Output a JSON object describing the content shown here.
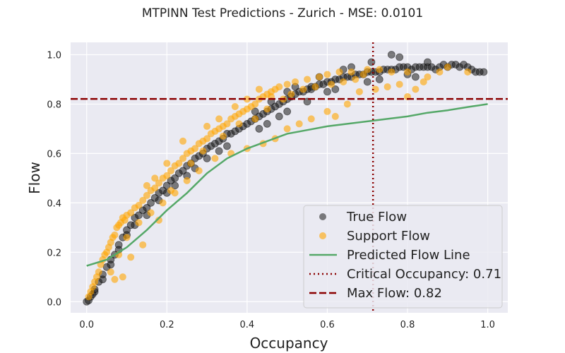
{
  "chart_data": {
    "type": "scatter",
    "title": "MTPINN Test Predictions - Zurich - MSE: 0.0101",
    "xlabel": "Occupancy",
    "ylabel": "Flow",
    "xlim": [
      -0.04,
      1.05
    ],
    "ylim": [
      -0.045,
      1.05
    ],
    "xticks": [
      0.0,
      0.2,
      0.4,
      0.6,
      0.8,
      1.0
    ],
    "yticks": [
      0.0,
      0.2,
      0.4,
      0.6,
      0.8,
      1.0
    ],
    "tick_labels_x": [
      "0.0",
      "0.2",
      "0.4",
      "0.6",
      "0.8",
      "1.0"
    ],
    "tick_labels_y": [
      "0.0",
      "0.2",
      "0.4",
      "0.6",
      "0.8",
      "1.0"
    ],
    "grid": true,
    "legend_position": "lower-right",
    "colors": {
      "background": "#eaeaf2",
      "grid": "#ffffff",
      "true_flow": "#1a1a1a",
      "support_flow": "#ffa500",
      "predicted_line": "#55a868",
      "reference_lines": "#8b0000"
    },
    "series": [
      {
        "name": "True Flow",
        "kind": "scatter",
        "marker": "circle",
        "opacity": 0.55,
        "points": [
          [
            0.0,
            0.0
          ],
          [
            0.005,
            0.005
          ],
          [
            0.01,
            0.02
          ],
          [
            0.015,
            0.03
          ],
          [
            0.02,
            0.04
          ],
          [
            0.03,
            0.08
          ],
          [
            0.04,
            0.11
          ],
          [
            0.05,
            0.14
          ],
          [
            0.06,
            0.17
          ],
          [
            0.07,
            0.19
          ],
          [
            0.08,
            0.23
          ],
          [
            0.09,
            0.26
          ],
          [
            0.1,
            0.29
          ],
          [
            0.11,
            0.31
          ],
          [
            0.12,
            0.34
          ],
          [
            0.13,
            0.35
          ],
          [
            0.14,
            0.37
          ],
          [
            0.15,
            0.38
          ],
          [
            0.16,
            0.4
          ],
          [
            0.17,
            0.42
          ],
          [
            0.18,
            0.44
          ],
          [
            0.19,
            0.45
          ],
          [
            0.2,
            0.47
          ],
          [
            0.21,
            0.49
          ],
          [
            0.22,
            0.5
          ],
          [
            0.23,
            0.52
          ],
          [
            0.24,
            0.53
          ],
          [
            0.25,
            0.55
          ],
          [
            0.26,
            0.56
          ],
          [
            0.27,
            0.58
          ],
          [
            0.28,
            0.59
          ],
          [
            0.29,
            0.6
          ],
          [
            0.3,
            0.62
          ],
          [
            0.31,
            0.63
          ],
          [
            0.32,
            0.64
          ],
          [
            0.33,
            0.65
          ],
          [
            0.34,
            0.66
          ],
          [
            0.35,
            0.68
          ],
          [
            0.36,
            0.68
          ],
          [
            0.37,
            0.69
          ],
          [
            0.38,
            0.7
          ],
          [
            0.39,
            0.71
          ],
          [
            0.4,
            0.72
          ],
          [
            0.41,
            0.73
          ],
          [
            0.42,
            0.74
          ],
          [
            0.43,
            0.75
          ],
          [
            0.44,
            0.76
          ],
          [
            0.45,
            0.77
          ],
          [
            0.46,
            0.78
          ],
          [
            0.47,
            0.79
          ],
          [
            0.48,
            0.8
          ],
          [
            0.49,
            0.81
          ],
          [
            0.5,
            0.82
          ],
          [
            0.51,
            0.83
          ],
          [
            0.52,
            0.84
          ],
          [
            0.53,
            0.85
          ],
          [
            0.54,
            0.85
          ],
          [
            0.55,
            0.86
          ],
          [
            0.56,
            0.87
          ],
          [
            0.57,
            0.87
          ],
          [
            0.58,
            0.88
          ],
          [
            0.59,
            0.88
          ],
          [
            0.6,
            0.89
          ],
          [
            0.61,
            0.89
          ],
          [
            0.62,
            0.9
          ],
          [
            0.63,
            0.9
          ],
          [
            0.64,
            0.91
          ],
          [
            0.65,
            0.91
          ],
          [
            0.66,
            0.91
          ],
          [
            0.67,
            0.92
          ],
          [
            0.68,
            0.92
          ],
          [
            0.69,
            0.92
          ],
          [
            0.7,
            0.93
          ],
          [
            0.71,
            0.93
          ],
          [
            0.72,
            0.93
          ],
          [
            0.73,
            0.93
          ],
          [
            0.74,
            0.94
          ],
          [
            0.75,
            0.94
          ],
          [
            0.76,
            0.94
          ],
          [
            0.77,
            0.94
          ],
          [
            0.78,
            0.95
          ],
          [
            0.79,
            0.95
          ],
          [
            0.8,
            0.95
          ],
          [
            0.81,
            0.94
          ],
          [
            0.82,
            0.95
          ],
          [
            0.83,
            0.95
          ],
          [
            0.84,
            0.95
          ],
          [
            0.85,
            0.95
          ],
          [
            0.86,
            0.95
          ],
          [
            0.87,
            0.94
          ],
          [
            0.88,
            0.95
          ],
          [
            0.89,
            0.96
          ],
          [
            0.9,
            0.95
          ],
          [
            0.91,
            0.96
          ],
          [
            0.92,
            0.96
          ],
          [
            0.93,
            0.95
          ],
          [
            0.94,
            0.96
          ],
          [
            0.95,
            0.95
          ],
          [
            0.96,
            0.94
          ],
          [
            0.97,
            0.93
          ],
          [
            0.98,
            0.93
          ],
          [
            0.99,
            0.93
          ],
          [
            0.76,
            1.0
          ],
          [
            0.78,
            0.99
          ],
          [
            0.85,
            0.97
          ],
          [
            0.64,
            0.94
          ],
          [
            0.66,
            0.95
          ],
          [
            0.71,
            0.97
          ],
          [
            0.56,
            0.86
          ],
          [
            0.48,
            0.75
          ],
          [
            0.5,
            0.77
          ],
          [
            0.45,
            0.72
          ],
          [
            0.43,
            0.7
          ],
          [
            0.55,
            0.81
          ],
          [
            0.6,
            0.85
          ],
          [
            0.62,
            0.86
          ],
          [
            0.7,
            0.89
          ],
          [
            0.73,
            0.9
          ],
          [
            0.8,
            0.92
          ],
          [
            0.82,
            0.91
          ],
          [
            0.35,
            0.63
          ],
          [
            0.33,
            0.61
          ],
          [
            0.3,
            0.58
          ],
          [
            0.27,
            0.54
          ],
          [
            0.25,
            0.51
          ],
          [
            0.22,
            0.47
          ],
          [
            0.2,
            0.44
          ],
          [
            0.18,
            0.41
          ],
          [
            0.15,
            0.35
          ],
          [
            0.12,
            0.31
          ],
          [
            0.1,
            0.27
          ],
          [
            0.08,
            0.21
          ],
          [
            0.06,
            0.15
          ],
          [
            0.04,
            0.09
          ],
          [
            0.02,
            0.05
          ],
          [
            0.5,
            0.85
          ],
          [
            0.52,
            0.87
          ],
          [
            0.58,
            0.91
          ],
          [
            0.46,
            0.81
          ],
          [
            0.42,
            0.77
          ]
        ]
      },
      {
        "name": "Support Flow",
        "kind": "scatter",
        "marker": "circle",
        "opacity": 0.6,
        "points": [
          [
            0.005,
            0.02
          ],
          [
            0.01,
            0.04
          ],
          [
            0.015,
            0.06
          ],
          [
            0.02,
            0.08
          ],
          [
            0.025,
            0.1
          ],
          [
            0.03,
            0.12
          ],
          [
            0.035,
            0.15
          ],
          [
            0.04,
            0.17
          ],
          [
            0.045,
            0.19
          ],
          [
            0.05,
            0.2
          ],
          [
            0.055,
            0.22
          ],
          [
            0.06,
            0.24
          ],
          [
            0.065,
            0.26
          ],
          [
            0.07,
            0.27
          ],
          [
            0.075,
            0.3
          ],
          [
            0.08,
            0.31
          ],
          [
            0.085,
            0.32
          ],
          [
            0.09,
            0.34
          ],
          [
            0.095,
            0.33
          ],
          [
            0.1,
            0.35
          ],
          [
            0.11,
            0.36
          ],
          [
            0.12,
            0.38
          ],
          [
            0.13,
            0.39
          ],
          [
            0.14,
            0.41
          ],
          [
            0.15,
            0.43
          ],
          [
            0.16,
            0.45
          ],
          [
            0.17,
            0.46
          ],
          [
            0.18,
            0.48
          ],
          [
            0.19,
            0.5
          ],
          [
            0.2,
            0.51
          ],
          [
            0.21,
            0.53
          ],
          [
            0.22,
            0.55
          ],
          [
            0.23,
            0.56
          ],
          [
            0.24,
            0.58
          ],
          [
            0.25,
            0.6
          ],
          [
            0.26,
            0.61
          ],
          [
            0.27,
            0.62
          ],
          [
            0.28,
            0.64
          ],
          [
            0.29,
            0.65
          ],
          [
            0.3,
            0.66
          ],
          [
            0.31,
            0.68
          ],
          [
            0.32,
            0.69
          ],
          [
            0.33,
            0.7
          ],
          [
            0.34,
            0.71
          ],
          [
            0.35,
            0.72
          ],
          [
            0.36,
            0.74
          ],
          [
            0.37,
            0.75
          ],
          [
            0.38,
            0.76
          ],
          [
            0.39,
            0.77
          ],
          [
            0.4,
            0.78
          ],
          [
            0.41,
            0.79
          ],
          [
            0.42,
            0.8
          ],
          [
            0.43,
            0.82
          ],
          [
            0.44,
            0.83
          ],
          [
            0.45,
            0.84
          ],
          [
            0.46,
            0.85
          ],
          [
            0.47,
            0.86
          ],
          [
            0.48,
            0.87
          ],
          [
            0.5,
            0.88
          ],
          [
            0.52,
            0.89
          ],
          [
            0.55,
            0.9
          ],
          [
            0.58,
            0.91
          ],
          [
            0.6,
            0.92
          ],
          [
            0.63,
            0.93
          ],
          [
            0.66,
            0.93
          ],
          [
            0.7,
            0.94
          ],
          [
            0.73,
            0.94
          ],
          [
            0.76,
            0.93
          ],
          [
            0.8,
            0.93
          ],
          [
            0.85,
            0.91
          ],
          [
            0.88,
            0.93
          ],
          [
            0.9,
            0.95
          ],
          [
            0.95,
            0.93
          ],
          [
            0.6,
            0.77
          ],
          [
            0.62,
            0.75
          ],
          [
            0.65,
            0.8
          ],
          [
            0.68,
            0.85
          ],
          [
            0.72,
            0.86
          ],
          [
            0.75,
            0.87
          ],
          [
            0.78,
            0.88
          ],
          [
            0.8,
            0.83
          ],
          [
            0.82,
            0.86
          ],
          [
            0.84,
            0.89
          ],
          [
            0.56,
            0.74
          ],
          [
            0.53,
            0.72
          ],
          [
            0.5,
            0.7
          ],
          [
            0.47,
            0.66
          ],
          [
            0.44,
            0.64
          ],
          [
            0.4,
            0.62
          ],
          [
            0.36,
            0.6
          ],
          [
            0.32,
            0.58
          ],
          [
            0.28,
            0.53
          ],
          [
            0.25,
            0.49
          ],
          [
            0.22,
            0.44
          ],
          [
            0.19,
            0.4
          ],
          [
            0.16,
            0.36
          ],
          [
            0.13,
            0.32
          ],
          [
            0.1,
            0.26
          ],
          [
            0.08,
            0.19
          ],
          [
            0.06,
            0.12
          ],
          [
            0.09,
            0.1
          ],
          [
            0.07,
            0.09
          ],
          [
            0.11,
            0.18
          ],
          [
            0.14,
            0.23
          ],
          [
            0.18,
            0.33
          ],
          [
            0.21,
            0.45
          ],
          [
            0.26,
            0.56
          ],
          [
            0.29,
            0.61
          ],
          [
            0.34,
            0.67
          ],
          [
            0.38,
            0.72
          ],
          [
            0.42,
            0.74
          ],
          [
            0.45,
            0.78
          ],
          [
            0.49,
            0.82
          ],
          [
            0.51,
            0.84
          ],
          [
            0.54,
            0.86
          ],
          [
            0.57,
            0.87
          ],
          [
            0.61,
            0.88
          ],
          [
            0.64,
            0.89
          ],
          [
            0.67,
            0.9
          ],
          [
            0.69,
            0.92
          ],
          [
            0.3,
            0.71
          ],
          [
            0.33,
            0.74
          ],
          [
            0.37,
            0.79
          ],
          [
            0.4,
            0.82
          ],
          [
            0.43,
            0.86
          ],
          [
            0.46,
            0.83
          ],
          [
            0.24,
            0.65
          ],
          [
            0.2,
            0.56
          ],
          [
            0.17,
            0.5
          ],
          [
            0.15,
            0.47
          ]
        ]
      },
      {
        "name": "Predicted Flow Line",
        "kind": "line",
        "points": [
          [
            0.0,
            0.145
          ],
          [
            0.05,
            0.17
          ],
          [
            0.1,
            0.22
          ],
          [
            0.15,
            0.29
          ],
          [
            0.2,
            0.37
          ],
          [
            0.25,
            0.44
          ],
          [
            0.3,
            0.52
          ],
          [
            0.35,
            0.58
          ],
          [
            0.4,
            0.62
          ],
          [
            0.45,
            0.65
          ],
          [
            0.5,
            0.68
          ],
          [
            0.55,
            0.695
          ],
          [
            0.6,
            0.71
          ],
          [
            0.65,
            0.72
          ],
          [
            0.7,
            0.73
          ],
          [
            0.75,
            0.74
          ],
          [
            0.8,
            0.75
          ],
          [
            0.85,
            0.765
          ],
          [
            0.9,
            0.775
          ],
          [
            0.95,
            0.788
          ],
          [
            1.0,
            0.8
          ]
        ]
      }
    ],
    "reference_lines": [
      {
        "name": "Critical Occupancy: 0.71",
        "orientation": "vertical",
        "value": 0.714,
        "style": "dotted"
      },
      {
        "name": "Max Flow: 0.82",
        "orientation": "horizontal",
        "value": 0.821,
        "style": "dashed"
      }
    ]
  }
}
